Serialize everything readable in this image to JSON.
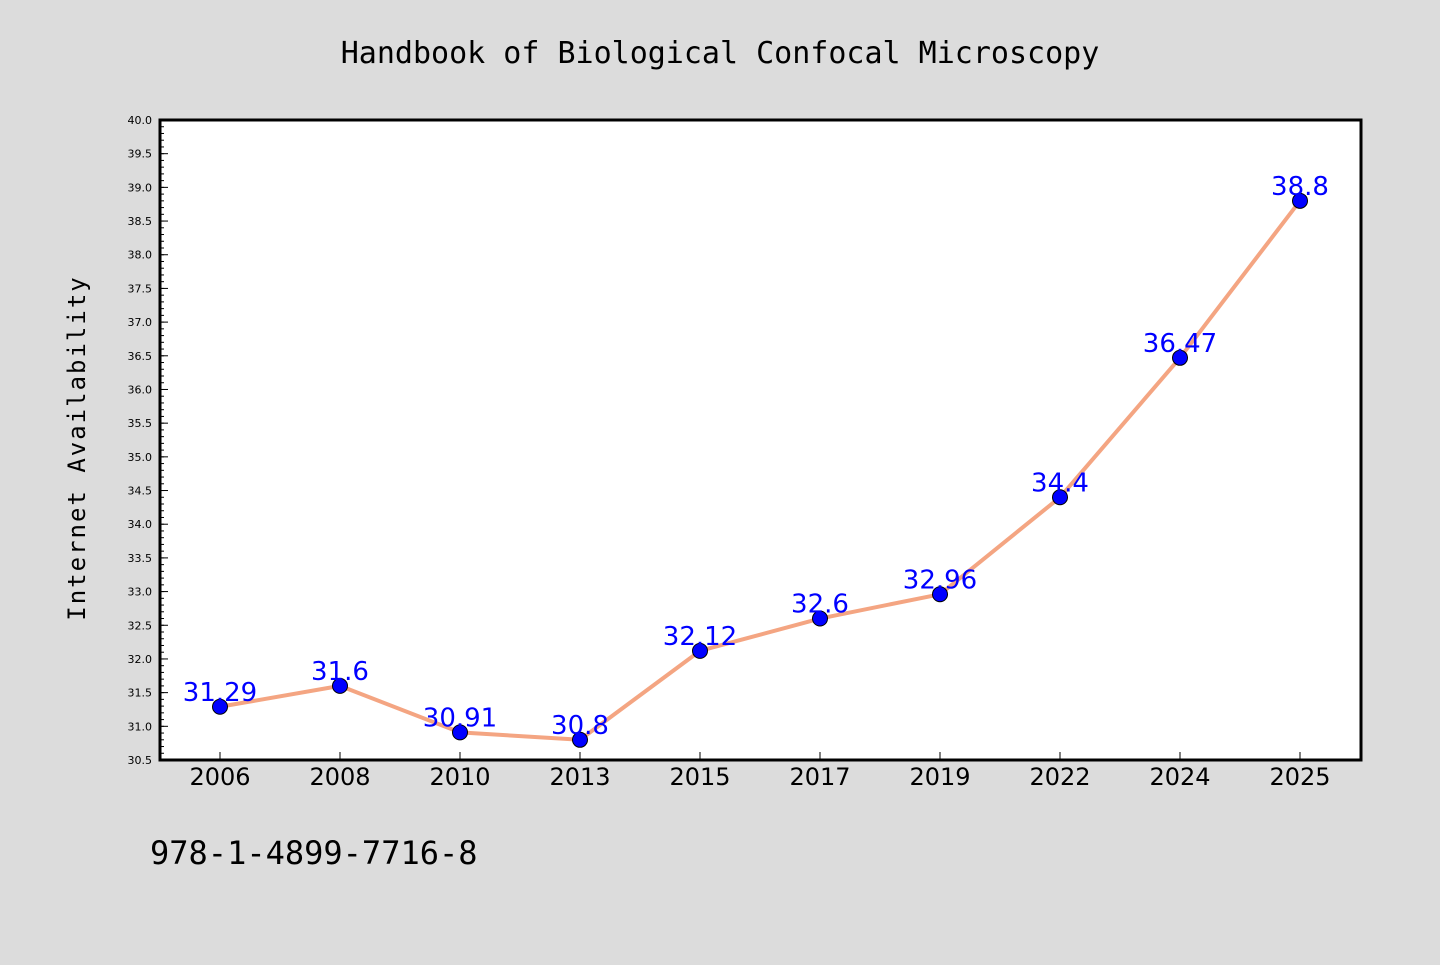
{
  "footnote": "978-1-4899-7716-8",
  "colors": {
    "background": "#dcdcdc",
    "plot_background": "#ffffff",
    "line": "#f4a582",
    "marker": "#0000ff",
    "data_label": "#0000ff"
  },
  "chart_data": {
    "type": "line",
    "title": "Handbook of Biological Confocal Microscopy",
    "xlabel": "",
    "ylabel": "Internet Availability",
    "categories": [
      "2006",
      "2008",
      "2010",
      "2013",
      "2015",
      "2017",
      "2019",
      "2022",
      "2024",
      "2025"
    ],
    "series": [
      {
        "values": [
          31.29,
          31.6,
          30.91,
          30.8,
          32.12,
          32.6,
          32.96,
          34.4,
          36.47,
          38.8
        ],
        "labels": [
          "31.29",
          "31.6",
          "30.91",
          "30.8",
          "32.12",
          "32.6",
          "32.96",
          "34.4",
          "36.47",
          "38.8"
        ]
      }
    ],
    "ylim": [
      30.5,
      40.0
    ],
    "yticks": [
      "30.5",
      "31.0",
      "31.5",
      "32.0",
      "32.5",
      "33.0",
      "33.5",
      "34.0",
      "34.5",
      "35.0",
      "35.5",
      "36.0",
      "36.5",
      "37.0",
      "37.5",
      "38.0",
      "38.5",
      "39.0",
      "39.5",
      "40.0"
    ],
    "grid": false,
    "legend": "none"
  }
}
